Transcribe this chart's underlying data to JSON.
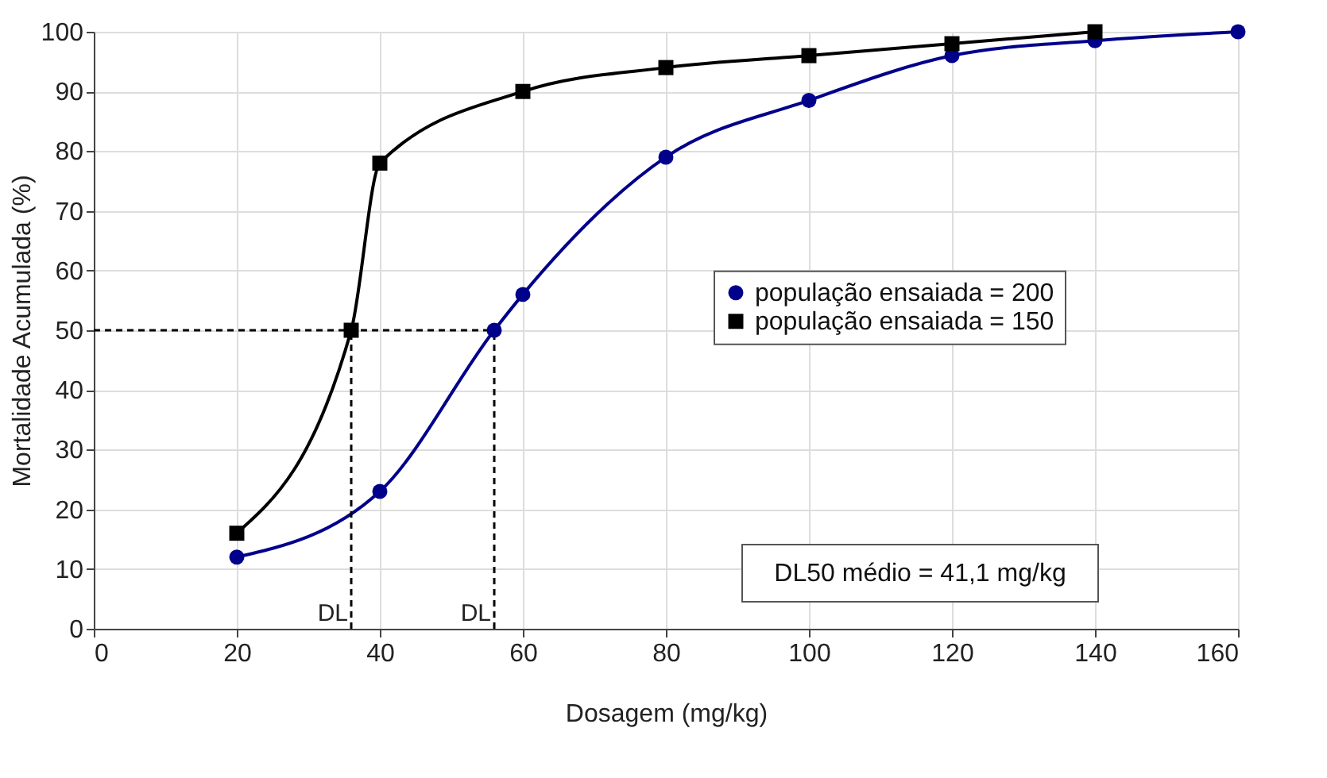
{
  "chart_data": {
    "type": "line",
    "xlabel": "Dosagem (mg/kg)",
    "ylabel": "Mortalidade Acumulada (%)",
    "xlim": [
      0,
      160
    ],
    "xticks": [
      0,
      20,
      40,
      60,
      80,
      100,
      120,
      140,
      160
    ],
    "ylim": [
      0,
      100
    ],
    "yticks": [
      0,
      10,
      20,
      30,
      40,
      50,
      60,
      70,
      80,
      90,
      100
    ],
    "grid": true,
    "legend": "right",
    "line_style": "solid",
    "series": [
      {
        "name": "população ensaiada = 200",
        "color": "#00008b",
        "marker": "circle",
        "x": [
          20,
          40,
          56,
          60,
          80,
          100,
          120,
          140,
          160
        ],
        "values": [
          12,
          23,
          50,
          56,
          79,
          88.5,
          96,
          98.5,
          100
        ]
      },
      {
        "name": "população ensaiada = 150",
        "color": "#000000",
        "marker": "square",
        "x": [
          20,
          36,
          40,
          60,
          80,
          100,
          120,
          140
        ],
        "values": [
          16,
          50,
          78,
          90,
          94,
          96,
          98,
          100
        ]
      }
    ],
    "ref_lines": [
      {
        "axis": "y",
        "value": 50,
        "label": null,
        "line_style": "dashed",
        "color": "#000000"
      },
      {
        "axis": "x",
        "value": 36,
        "label": "DL",
        "line_style": "dashed",
        "color": "#000000"
      },
      {
        "axis": "x",
        "value": 56,
        "label": "DL",
        "line_style": "dashed",
        "color": "#000000"
      }
    ],
    "annotations": [
      "DL50 médio = 41,1 mg/kg"
    ]
  }
}
